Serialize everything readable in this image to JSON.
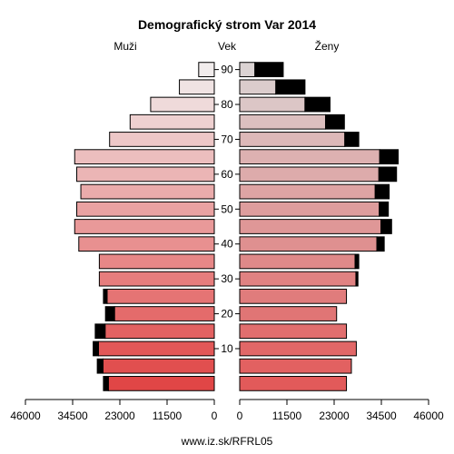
{
  "chart_data": {
    "type": "bar",
    "title": "Demografický strom Var 2014",
    "left_label": "Muži",
    "center_label": "Vek",
    "right_label": "Ženy",
    "footer": "www.iz.sk/RFRL05",
    "age_ticks": [
      "10",
      "20",
      "30",
      "40",
      "50",
      "60",
      "70",
      "80",
      "90"
    ],
    "x_ticks_left": [
      "46000",
      "34500",
      "23000",
      "11500",
      "0"
    ],
    "x_ticks_right": [
      "0",
      "11500",
      "23000",
      "34500",
      "46000"
    ],
    "x_range": [
      0,
      46000
    ],
    "age_groups": [
      "0-4",
      "5-9",
      "10-14",
      "15-19",
      "20-24",
      "25-29",
      "30-34",
      "35-39",
      "40-44",
      "45-49",
      "50-54",
      "55-59",
      "60-64",
      "65-69",
      "70-74",
      "75-79",
      "80-84",
      "85-89",
      "90+"
    ],
    "series": [
      {
        "name": "Muži",
        "total": [
          27000,
          28500,
          29500,
          29000,
          26500,
          27000,
          28000,
          28000,
          33000,
          34000,
          33500,
          32500,
          33500,
          34000,
          25500,
          20500,
          15500,
          8500,
          3800
        ],
        "excess": [
          1200,
          1400,
          1300,
          2400,
          2200,
          900,
          0,
          0,
          0,
          0,
          0,
          0,
          0,
          0,
          0,
          0,
          0,
          0,
          0
        ],
        "color": "#ff0000"
      },
      {
        "name": "Ženy",
        "total": [
          26000,
          27200,
          28400,
          26000,
          23600,
          26000,
          28800,
          29000,
          35200,
          37000,
          36200,
          36400,
          38200,
          38600,
          29000,
          25500,
          22000,
          15900,
          10600
        ],
        "excess": [
          0,
          0,
          0,
          0,
          0,
          0,
          500,
          900,
          1800,
          2600,
          2200,
          3400,
          4300,
          4500,
          3400,
          4600,
          6100,
          7100,
          6900
        ],
        "color": "#e0e0e0"
      }
    ],
    "colors": {
      "male_young": "#e04646",
      "male_old": "#f1ecec",
      "female_young": "#e25a5a",
      "female_old": "#dbd3d3",
      "excess": "#000000"
    }
  }
}
